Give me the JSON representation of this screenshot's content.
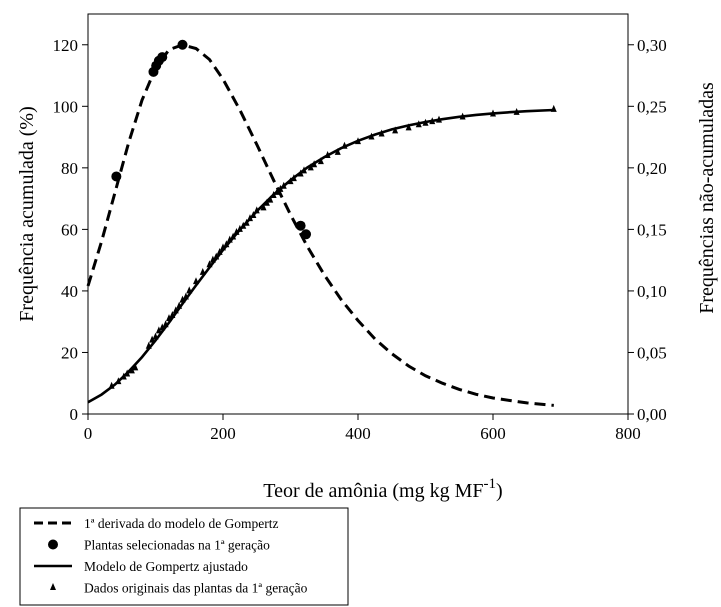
{
  "chart_data": {
    "type": "line",
    "xlabel": "Teor de amônia (mg kg MF",
    "xlabel_sup": "-1",
    "xlabel_end": ")",
    "ylabel": "Frequência acumulada (%)",
    "y2label": "Frequências não-acumuladas",
    "xlim": [
      0,
      800
    ],
    "ylim": [
      0,
      130
    ],
    "y2lim": [
      0,
      0.325
    ],
    "xticks": [
      "0",
      "200",
      "400",
      "600",
      "800"
    ],
    "yticks": [
      "0",
      "20",
      "40",
      "60",
      "80",
      "100",
      "120"
    ],
    "y2ticks": [
      "0,00",
      "0,05",
      "0,10",
      "0,15",
      "0,20",
      "0,25",
      "0,30"
    ],
    "grid": false,
    "legend_position": "bottom-left-outside",
    "series": [
      {
        "name": "1ª derivada  do modelo de Gompertz",
        "axis": "right",
        "style": "dashed",
        "x": [
          0,
          20,
          40,
          60,
          80,
          100,
          120,
          140,
          160,
          180,
          200,
          225,
          250,
          275,
          300,
          325,
          350,
          375,
          400,
          425,
          450,
          475,
          500,
          525,
          550,
          575,
          600,
          625,
          650,
          680,
          690
        ],
        "y": [
          0.104,
          0.14,
          0.18,
          0.22,
          0.255,
          0.281,
          0.296,
          0.3,
          0.297,
          0.288,
          0.272,
          0.247,
          0.219,
          0.19,
          0.162,
          0.136,
          0.113,
          0.093,
          0.076,
          0.061,
          0.049,
          0.039,
          0.031,
          0.025,
          0.02,
          0.016,
          0.013,
          0.011,
          0.009,
          0.0075,
          0.007
        ]
      },
      {
        "name": "Plantas selecionadas na 1ª geração",
        "axis": "right",
        "style": "markers-circle",
        "x": [
          42,
          97,
          101,
          105,
          110,
          140,
          315,
          323
        ],
        "y": [
          0.193,
          0.278,
          0.283,
          0.287,
          0.29,
          0.3,
          0.153,
          0.146
        ]
      },
      {
        "name": "Modelo de Gompertz ajustado",
        "axis": "left",
        "style": "solid",
        "x": [
          0,
          20,
          40,
          60,
          80,
          100,
          120,
          140,
          160,
          180,
          200,
          225,
          250,
          275,
          300,
          325,
          350,
          375,
          400,
          425,
          450,
          475,
          500,
          525,
          550,
          575,
          600,
          625,
          650,
          690
        ],
        "y": [
          3.8,
          6.3,
          9.6,
          13.7,
          18.5,
          23.9,
          29.7,
          35.8,
          41.8,
          47.6,
          53.3,
          59.9,
          65.9,
          71.3,
          76.0,
          80.1,
          83.5,
          86.4,
          88.8,
          90.8,
          92.5,
          93.8,
          94.9,
          95.8,
          96.6,
          97.2,
          97.7,
          98.1,
          98.4,
          98.8
        ]
      },
      {
        "name": "Dados originais das plantas da 1ª geração",
        "axis": "left",
        "style": "markers-triangle",
        "x": [
          35,
          45,
          53,
          58,
          65,
          70,
          90,
          95,
          100,
          105,
          110,
          115,
          120,
          125,
          130,
          135,
          140,
          145,
          150,
          160,
          170,
          180,
          185,
          190,
          195,
          200,
          205,
          210,
          215,
          220,
          225,
          230,
          235,
          240,
          245,
          250,
          260,
          265,
          270,
          275,
          280,
          285,
          290,
          300,
          305,
          315,
          320,
          330,
          335,
          345,
          355,
          370,
          380,
          400,
          420,
          435,
          455,
          475,
          490,
          500,
          510,
          520,
          555,
          600,
          635,
          690
        ],
        "y": [
          9,
          10.5,
          12,
          13,
          14,
          15,
          22,
          24,
          25,
          27,
          28,
          29,
          31,
          32,
          33.5,
          35,
          37,
          38,
          40,
          43,
          46,
          48.5,
          50,
          51,
          52.5,
          54,
          55,
          56.5,
          57.5,
          59,
          60,
          61,
          62,
          63.5,
          64.5,
          66,
          67,
          68.5,
          69.5,
          71,
          72,
          73,
          74,
          75.5,
          76.5,
          78,
          79,
          80,
          81,
          82,
          84,
          85,
          87,
          88.5,
          90,
          91,
          92,
          93,
          94,
          94.5,
          95,
          95.5,
          96.5,
          97.5,
          98,
          99
        ]
      }
    ]
  }
}
